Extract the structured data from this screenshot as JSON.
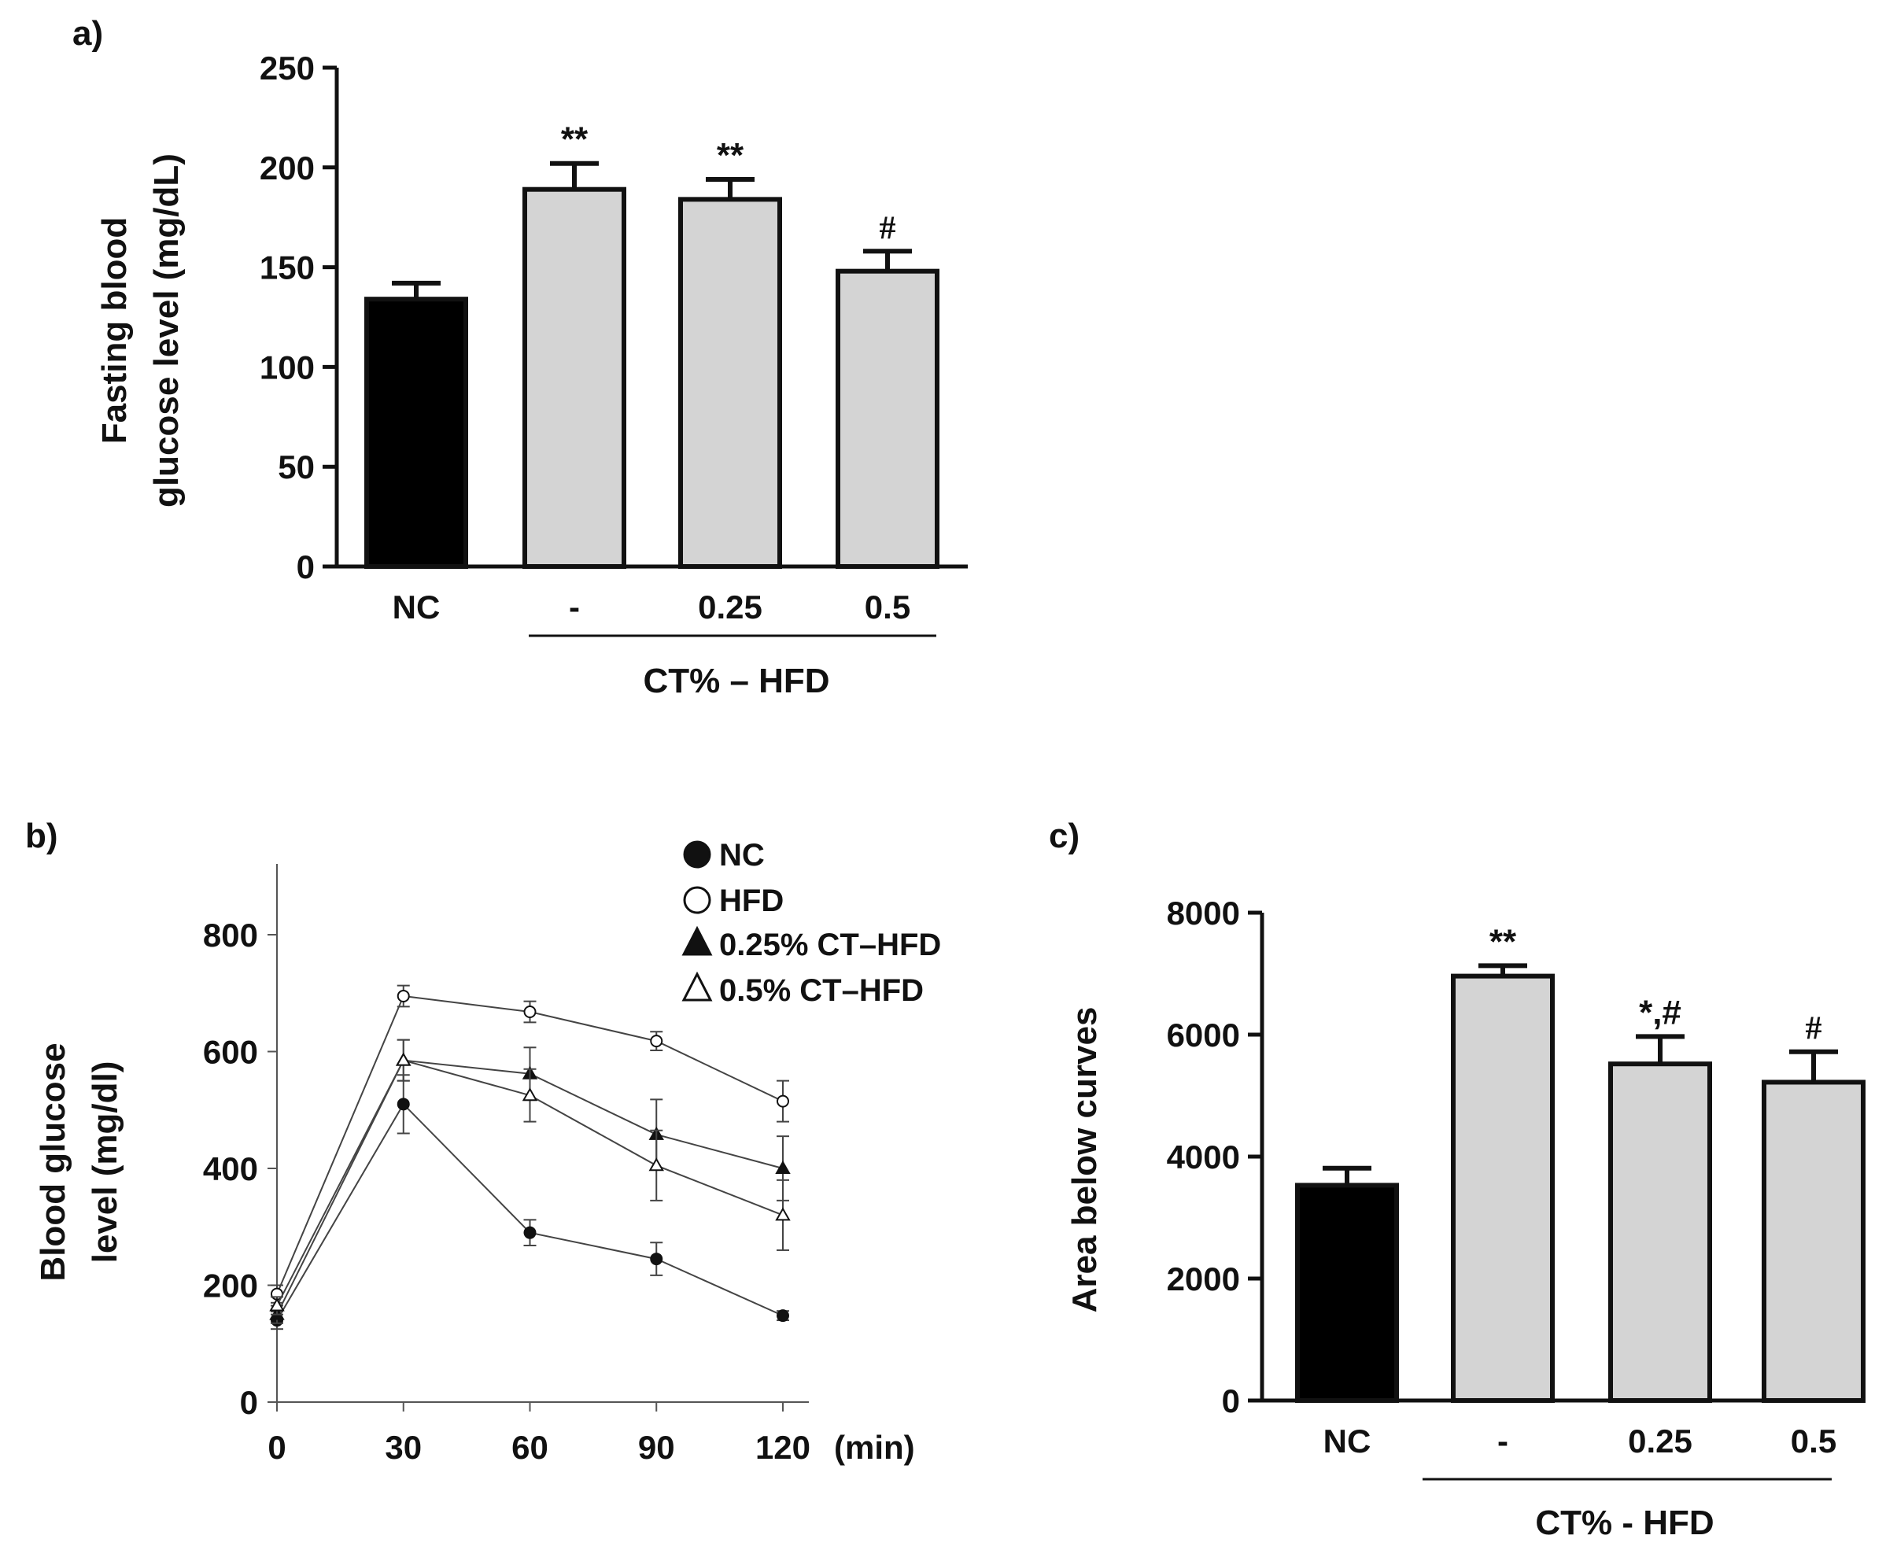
{
  "chart_data": [
    {
      "panel": "a)",
      "type": "bar",
      "ylabel_lines": [
        "Fasting blood",
        "glucose level (mg/dL)"
      ],
      "ylim": [
        0,
        250
      ],
      "yticks": [
        "0",
        "50",
        "100",
        "150",
        "200",
        "250"
      ],
      "categories": [
        "NC",
        "-",
        "0.25",
        "0.5"
      ],
      "values": [
        134,
        189,
        184,
        148
      ],
      "errors": [
        8,
        13,
        10,
        10
      ],
      "colors": [
        "#000000",
        "#d4d4d4",
        "#d4d4d4",
        "#d4d4d4"
      ],
      "significance": [
        "",
        "**",
        "**",
        "#"
      ],
      "group_label": "CT% – HFD"
    },
    {
      "panel": "b)",
      "type": "line",
      "ylabel_lines": [
        "Blood glucose",
        "level (mg/dl)"
      ],
      "ylim": [
        0,
        800
      ],
      "yticks": [
        "0",
        "200",
        "400",
        "600",
        "800"
      ],
      "x": [
        0,
        30,
        60,
        90,
        120
      ],
      "xticks": [
        "0",
        "30",
        "60",
        "90",
        "120"
      ],
      "xunit": "(min)",
      "series": [
        {
          "name": "NC",
          "marker": "filled-circle",
          "values": [
            140,
            510,
            290,
            245,
            148
          ],
          "errors": [
            15,
            50,
            22,
            28,
            8
          ]
        },
        {
          "name": "HFD",
          "marker": "open-circle",
          "values": [
            185,
            695,
            668,
            618,
            515
          ],
          "errors": [
            15,
            18,
            18,
            16,
            35
          ]
        },
        {
          "name": "0.25% CT–HFD",
          "marker": "filled-triangle",
          "values": [
            150,
            585,
            562,
            458,
            400
          ],
          "errors": [
            15,
            35,
            45,
            60,
            55
          ]
        },
        {
          "name": "0.5% CT–HFD",
          "marker": "open-triangle",
          "values": [
            165,
            585,
            525,
            405,
            320
          ],
          "errors": [
            15,
            35,
            45,
            60,
            60
          ]
        }
      ]
    },
    {
      "panel": "c)",
      "type": "bar",
      "ylabel_lines": [
        "Area below  curves"
      ],
      "ylim": [
        0,
        8000
      ],
      "yticks": [
        "0",
        "2000",
        "4000",
        "6000",
        "8000"
      ],
      "categories": [
        "NC",
        "-",
        "0.25",
        "0.5"
      ],
      "values": [
        3530,
        6960,
        5520,
        5220
      ],
      "errors": [
        280,
        170,
        450,
        500
      ],
      "colors": [
        "#000000",
        "#d4d4d4",
        "#d4d4d4",
        "#d4d4d4"
      ],
      "significance": [
        "",
        "**",
        "*,#",
        "#"
      ],
      "group_label": "CT% - HFD"
    }
  ]
}
